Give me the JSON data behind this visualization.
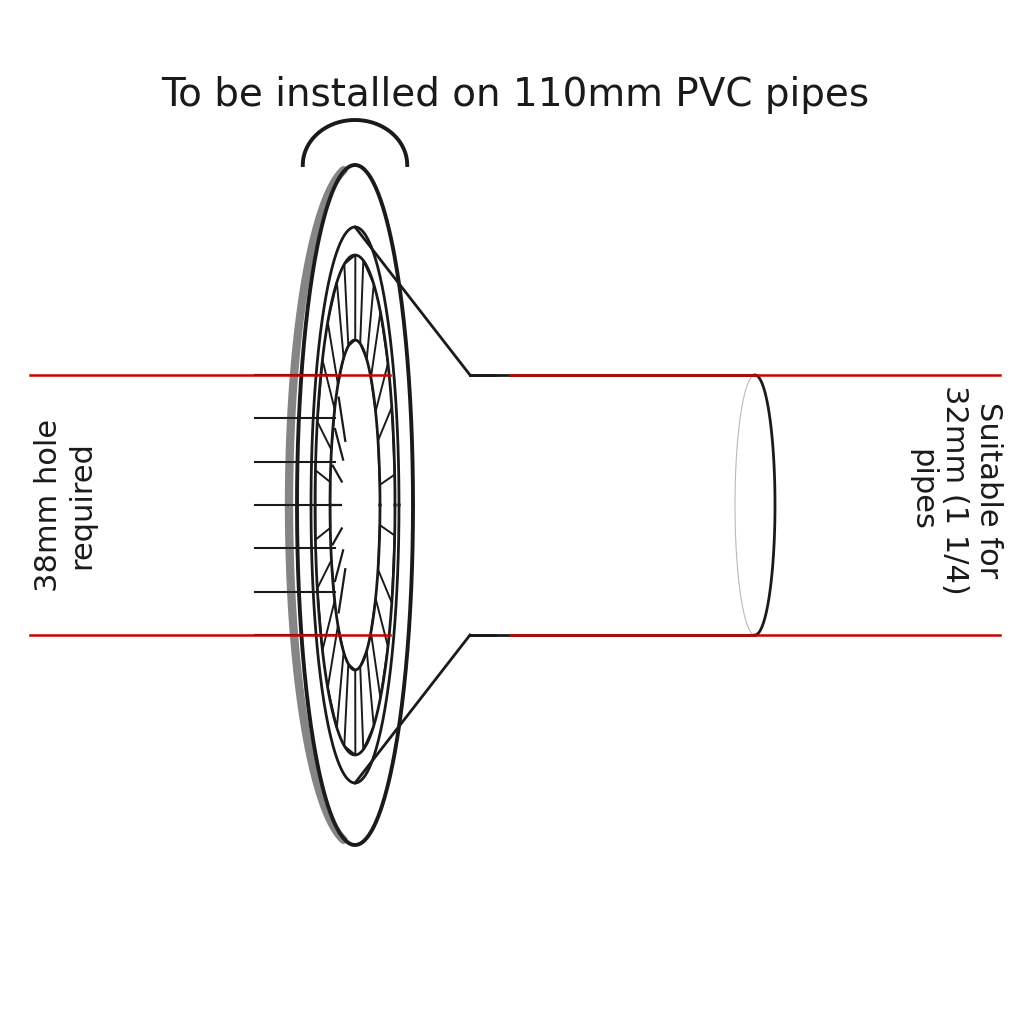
{
  "title": "To be installed on 110mm PVC pipes",
  "title_fontsize": 28,
  "title_color": "#1a1a1a",
  "left_label_line1": "38mm hole",
  "left_label_line2": "required",
  "right_label_line1": "Suitable for",
  "right_label_line2": "32mm (1 1/4)",
  "right_label_line3": "pipes",
  "label_fontsize": 22,
  "label_color": "#1a1a1a",
  "red_line_color": "#cc0000",
  "bg_color": "#ffffff",
  "black": "#1a1a1a",
  "gray": "#888888"
}
